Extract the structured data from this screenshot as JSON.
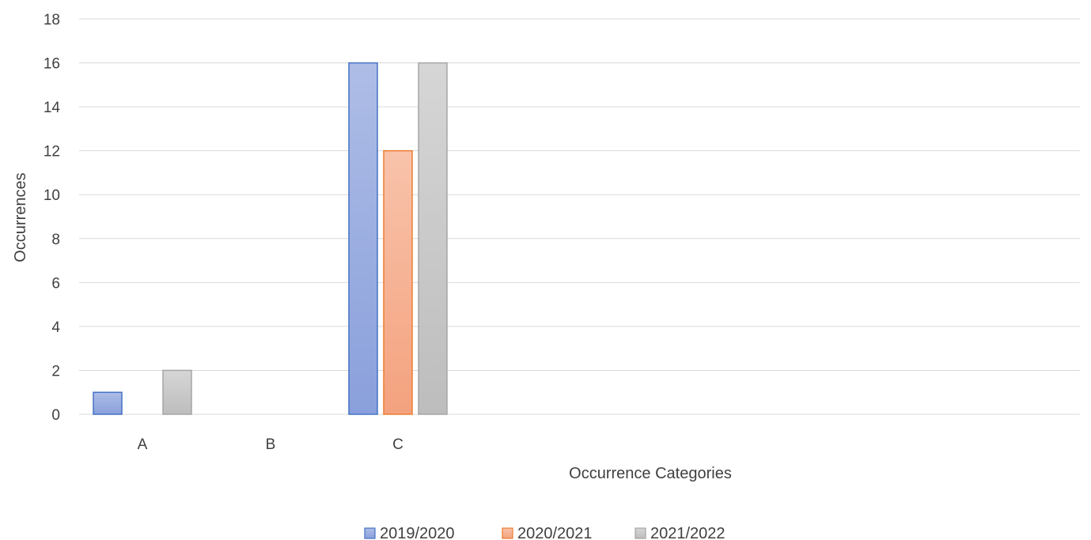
{
  "chart_data": {
    "type": "bar",
    "title": "",
    "xlabel": "Occurrence Categories",
    "ylabel": "Occurrences",
    "categories": [
      "A",
      "B",
      "C"
    ],
    "series": [
      {
        "name": "2019/2020",
        "values": [
          1,
          0,
          16
        ],
        "color": "#8fa6de",
        "gradient_top": "#aebde6",
        "gradient_bottom": "#8aa0dc",
        "border": "#4472c4"
      },
      {
        "name": "2020/2021",
        "values": [
          0,
          0,
          12
        ],
        "color": "#f5ad8a",
        "gradient_top": "#f8c3ab",
        "gradient_bottom": "#f4a27e",
        "border": "#ed7d31"
      },
      {
        "name": "2021/2022",
        "values": [
          2,
          0,
          16
        ],
        "color": "#c4c4c4",
        "gradient_top": "#d6d6d6",
        "gradient_bottom": "#bdbdbd",
        "border": "#a5a5a5"
      }
    ],
    "ylim": [
      0,
      18
    ],
    "yticks": [
      "0",
      "2",
      "4",
      "6",
      "8",
      "10",
      "12",
      "14",
      "16",
      "18"
    ],
    "grid": true,
    "legend_position": "bottom"
  }
}
